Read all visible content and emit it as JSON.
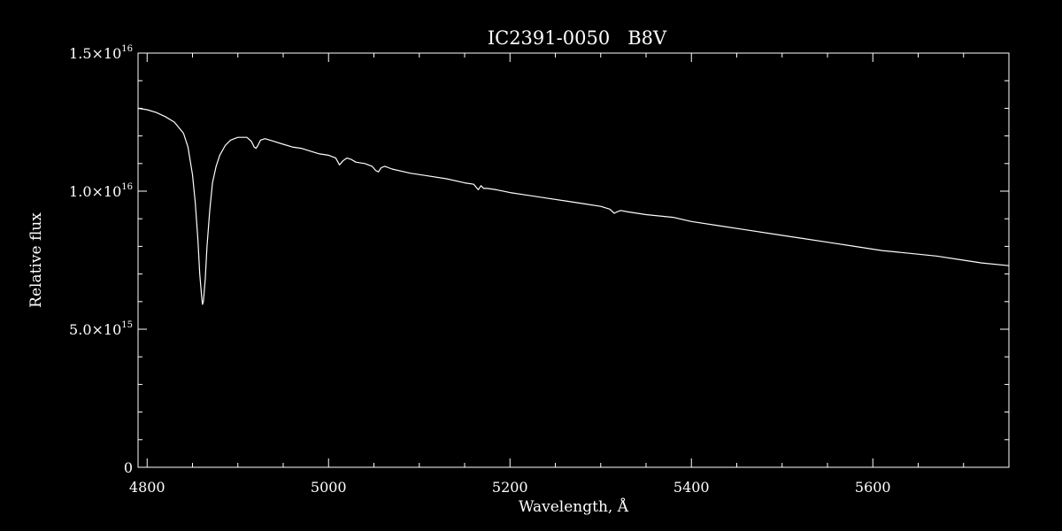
{
  "chart_data": {
    "type": "line",
    "title": "IC2391-0050   B8V",
    "xlabel": "Wavelength, Å",
    "ylabel": "Relative flux",
    "xlim": [
      4790,
      5750
    ],
    "ylim": [
      0,
      1.5e+16
    ],
    "xticks": [
      4800,
      5000,
      5200,
      5400,
      5600
    ],
    "xtick_labels": [
      "4800",
      "5000",
      "5200",
      "5400",
      "5600"
    ],
    "yticks": [
      0,
      5000000000000000.0,
      1e+16,
      1.5e+16
    ],
    "ytick_labels": [
      {
        "mantissa": "0",
        "exponent": ""
      },
      {
        "mantissa": "5.0×10",
        "exponent": "15"
      },
      {
        "mantissa": "1.0×10",
        "exponent": "16"
      },
      {
        "mantissa": "1.5×10",
        "exponent": "16"
      }
    ],
    "grid": false,
    "line_color": "#ffffff",
    "background": "#000000",
    "series": [
      {
        "x": [
          4790,
          4800,
          4810,
          4820,
          4830,
          4840,
          4845,
          4850,
          4853,
          4856,
          4858,
          4860,
          4861,
          4862,
          4864,
          4866,
          4869,
          4872,
          4876,
          4880,
          4886,
          4892,
          4900,
          4910,
          4915,
          4918,
          4920,
          4922,
          4925,
          4930,
          4940,
          4950,
          4960,
          4970,
          4980,
          4990,
          5000,
          5008,
          5012,
          5016,
          5020,
          5025,
          5030,
          5040,
          5048,
          5052,
          5055,
          5058,
          5062,
          5070,
          5090,
          5110,
          5130,
          5150,
          5160,
          5165,
          5168,
          5171,
          5175,
          5185,
          5200,
          5220,
          5240,
          5260,
          5280,
          5300,
          5310,
          5315,
          5318,
          5322,
          5330,
          5350,
          5380,
          5400,
          5430,
          5460,
          5490,
          5520,
          5550,
          5580,
          5610,
          5640,
          5670,
          5700,
          5720,
          5750
        ],
        "y": [
          1.3e+16,
          1.295e+16,
          1.285e+16,
          1.27e+16,
          1.25e+16,
          1.21e+16,
          1.16e+16,
          1.06e+16,
          9600000000000000.0,
          8200000000000000.0,
          7000000000000000.0,
          6200000000000000.0,
          5900000000000000.0,
          6000000000000000.0,
          6800000000000000.0,
          8000000000000000.0,
          9300000000000000.0,
          1.03e+16,
          1.09e+16,
          1.13e+16,
          1.165e+16,
          1.185e+16,
          1.195e+16,
          1.195e+16,
          1.18e+16,
          1.16e+16,
          1.155e+16,
          1.165e+16,
          1.185e+16,
          1.19e+16,
          1.18e+16,
          1.17e+16,
          1.16e+16,
          1.155e+16,
          1.145e+16,
          1.135e+16,
          1.13e+16,
          1.12e+16,
          1.095e+16,
          1.11e+16,
          1.12e+16,
          1.115e+16,
          1.105e+16,
          1.1e+16,
          1.09e+16,
          1.075e+16,
          1.07e+16,
          1.085e+16,
          1.09e+16,
          1.08e+16,
          1.065e+16,
          1.055e+16,
          1.045e+16,
          1.03e+16,
          1.025e+16,
          1.005e+16,
          1.02e+16,
          1.01e+16,
          1.01e+16,
          1.005e+16,
          9950000000000000.0,
          9850000000000000.0,
          9750000000000000.0,
          9650000000000000.0,
          9550000000000000.0,
          9450000000000000.0,
          9350000000000000.0,
          9200000000000000.0,
          9250000000000000.0,
          9300000000000000.0,
          9250000000000000.0,
          9150000000000000.0,
          9050000000000000.0,
          8900000000000000.0,
          8750000000000000.0,
          8600000000000000.0,
          8450000000000000.0,
          8300000000000000.0,
          8150000000000000.0,
          8000000000000000.0,
          7850000000000000.0,
          7750000000000000.0,
          7650000000000000.0,
          7500000000000000.0,
          7400000000000000.0,
          7300000000000000.0
        ]
      }
    ]
  }
}
